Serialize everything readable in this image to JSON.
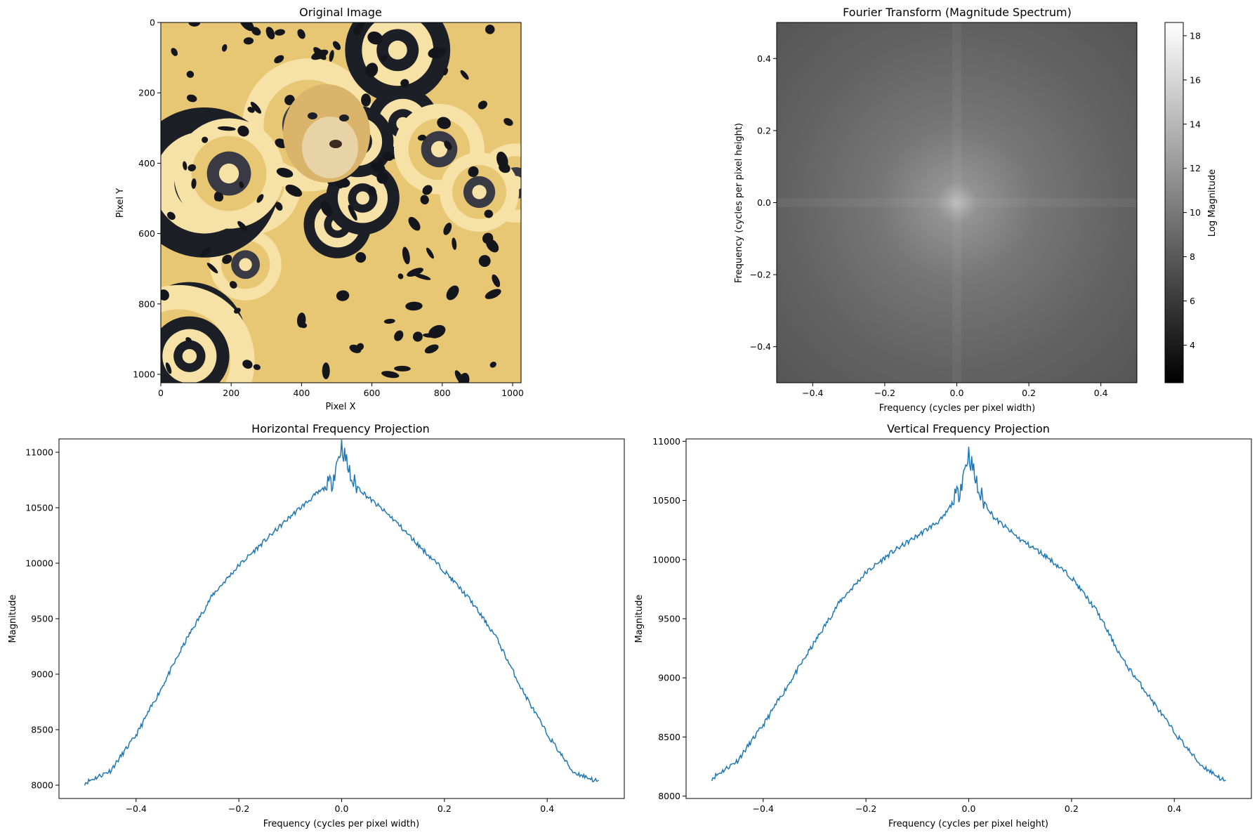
{
  "panels": {
    "original": {
      "title": "Original Image",
      "xlabel": "Pixel X",
      "ylabel": "Pixel Y",
      "xticks": [
        0,
        200,
        400,
        600,
        800,
        1000
      ],
      "yticks": [
        0,
        200,
        400,
        600,
        800,
        1000
      ],
      "xlim": [
        0,
        1024
      ],
      "ylim": [
        1024,
        0
      ],
      "palette": [
        "#1c1f26",
        "#e8c774",
        "#f6e2a6",
        "#3a3a44"
      ]
    },
    "spectrum": {
      "title": "Fourier Transform (Magnitude Spectrum)",
      "xlabel": "Frequency (cycles per pixel width)",
      "ylabel": "Frequency (cycles per pixel height)",
      "xticks": [
        -0.4,
        -0.2,
        0.0,
        0.2,
        0.4
      ],
      "yticks": [
        0.4,
        0.2,
        0.0,
        -0.2,
        -0.4
      ],
      "xlim": [
        -0.5,
        0.5
      ],
      "ylim": [
        -0.5,
        0.5
      ],
      "colorbar": {
        "label": "Log Magnitude",
        "ticks": [
          4,
          6,
          8,
          10,
          12,
          14,
          16,
          18
        ],
        "range": [
          2.3,
          18.6
        ],
        "colormap": "gray"
      }
    }
  },
  "chart_data": [
    {
      "type": "line",
      "title": "Horizontal Frequency Projection",
      "xlabel": "Frequency (cycles per pixel width)",
      "ylabel": "Magnitude",
      "xlim": [
        -0.55,
        0.55
      ],
      "ylim": [
        7880,
        11120
      ],
      "xticks": [
        -0.4,
        -0.2,
        0.0,
        0.2,
        0.4
      ],
      "yticks": [
        8000,
        8500,
        9000,
        9500,
        10000,
        10500,
        11000
      ],
      "color": "#1f77b4",
      "x": [
        -0.5,
        -0.45,
        -0.4,
        -0.35,
        -0.3,
        -0.25,
        -0.2,
        -0.15,
        -0.1,
        -0.05,
        -0.02,
        0.0,
        0.02,
        0.05,
        0.1,
        0.15,
        0.2,
        0.25,
        0.3,
        0.35,
        0.4,
        0.45,
        0.5
      ],
      "y": [
        8020,
        8130,
        8450,
        8880,
        9330,
        9720,
        9980,
        10200,
        10420,
        10620,
        10720,
        11060,
        10740,
        10600,
        10400,
        10160,
        9930,
        9670,
        9340,
        8870,
        8460,
        8120,
        8030
      ]
    },
    {
      "type": "line",
      "title": "Vertical Frequency Projection",
      "xlabel": "Frequency (cycles per pixel height)",
      "ylabel": "Magnitude",
      "xlim": [
        -0.55,
        0.55
      ],
      "ylim": [
        7980,
        11020
      ],
      "xticks": [
        -0.4,
        -0.2,
        0.0,
        0.2,
        0.4
      ],
      "yticks": [
        8000,
        8500,
        9000,
        9500,
        10000,
        10500,
        11000
      ],
      "color": "#1f77b4",
      "x": [
        -0.5,
        -0.45,
        -0.4,
        -0.35,
        -0.3,
        -0.25,
        -0.2,
        -0.15,
        -0.1,
        -0.05,
        -0.02,
        0.0,
        0.02,
        0.05,
        0.1,
        0.15,
        0.2,
        0.25,
        0.3,
        0.35,
        0.4,
        0.45,
        0.5
      ],
      "y": [
        8150,
        8300,
        8600,
        8950,
        9300,
        9650,
        9890,
        10060,
        10200,
        10350,
        10560,
        10900,
        10560,
        10350,
        10170,
        10030,
        9850,
        9560,
        9150,
        8850,
        8540,
        8270,
        8120
      ]
    }
  ]
}
